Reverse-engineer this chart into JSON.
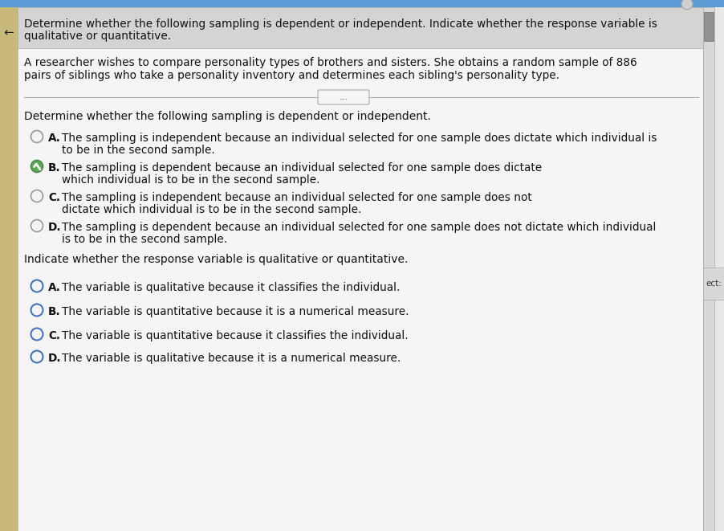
{
  "bg_color": "#e8e8e8",
  "top_bar_color": "#5b9bd5",
  "white_bg": "#f5f5f5",
  "header_bg": "#d4d4d4",
  "left_strip_color": "#c8b87a",
  "scrollbar_color": "#c0c0c0",
  "scroll_handle_color": "#909090",
  "header_text_line1": "Determine whether the following sampling is dependent or independent. Indicate whether the response variable is",
  "header_text_line2": "qualitative or quantitative.",
  "scenario_line1": "A researcher wishes to compare personality types of brothers and sisters. She obtains a random sample of 886",
  "scenario_line2": "pairs of siblings who take a personality inventory and determines each sibling's personality type.",
  "divider_label": "...",
  "section1_title": "Determine whether the following sampling is dependent or independent.",
  "s1_options": [
    {
      "label": "A.",
      "line1": "The sampling is independent because an individual selected for one sample does dictate which individual is",
      "line2": "to be in the second sample.",
      "checked": false,
      "radio_color": "#888888"
    },
    {
      "label": "B.",
      "line1": "The sampling is dependent because an individual selected for one sample does dictate",
      "line2": "which individual is to be in the second sample.",
      "checked": true,
      "radio_color": "#888888"
    },
    {
      "label": "C.",
      "line1": "The sampling is independent because an individual selected for one sample does not",
      "line2": "dictate which individual is to be in the second sample.",
      "checked": false,
      "radio_color": "#888888"
    },
    {
      "label": "D.",
      "line1": "The sampling is dependent because an individual selected for one sample does not dictate which individual",
      "line2": "is to be in the second sample.",
      "checked": false,
      "radio_color": "#888888"
    }
  ],
  "section2_title": "Indicate whether the response variable is qualitative or quantitative.",
  "s2_options": [
    {
      "label": "A.",
      "line1": "The variable is qualitative because it classifies the individual.",
      "line2": "",
      "radio_color": "#4472c4"
    },
    {
      "label": "B.",
      "line1": "The variable is quantitative because it is a numerical measure.",
      "line2": "",
      "radio_color": "#4472c4"
    },
    {
      "label": "C.",
      "line1": "The variable is quantitative because it classifies the individual.",
      "line2": "",
      "radio_color": "#4472c4"
    },
    {
      "label": "D.",
      "line1": "The variable is qualitative because it is a numerical measure.",
      "line2": "",
      "radio_color": "#4472c4"
    }
  ],
  "right_label": "ect:",
  "font_size": 9.8,
  "font_size_title": 10.0,
  "font_family": "DejaVu Sans"
}
